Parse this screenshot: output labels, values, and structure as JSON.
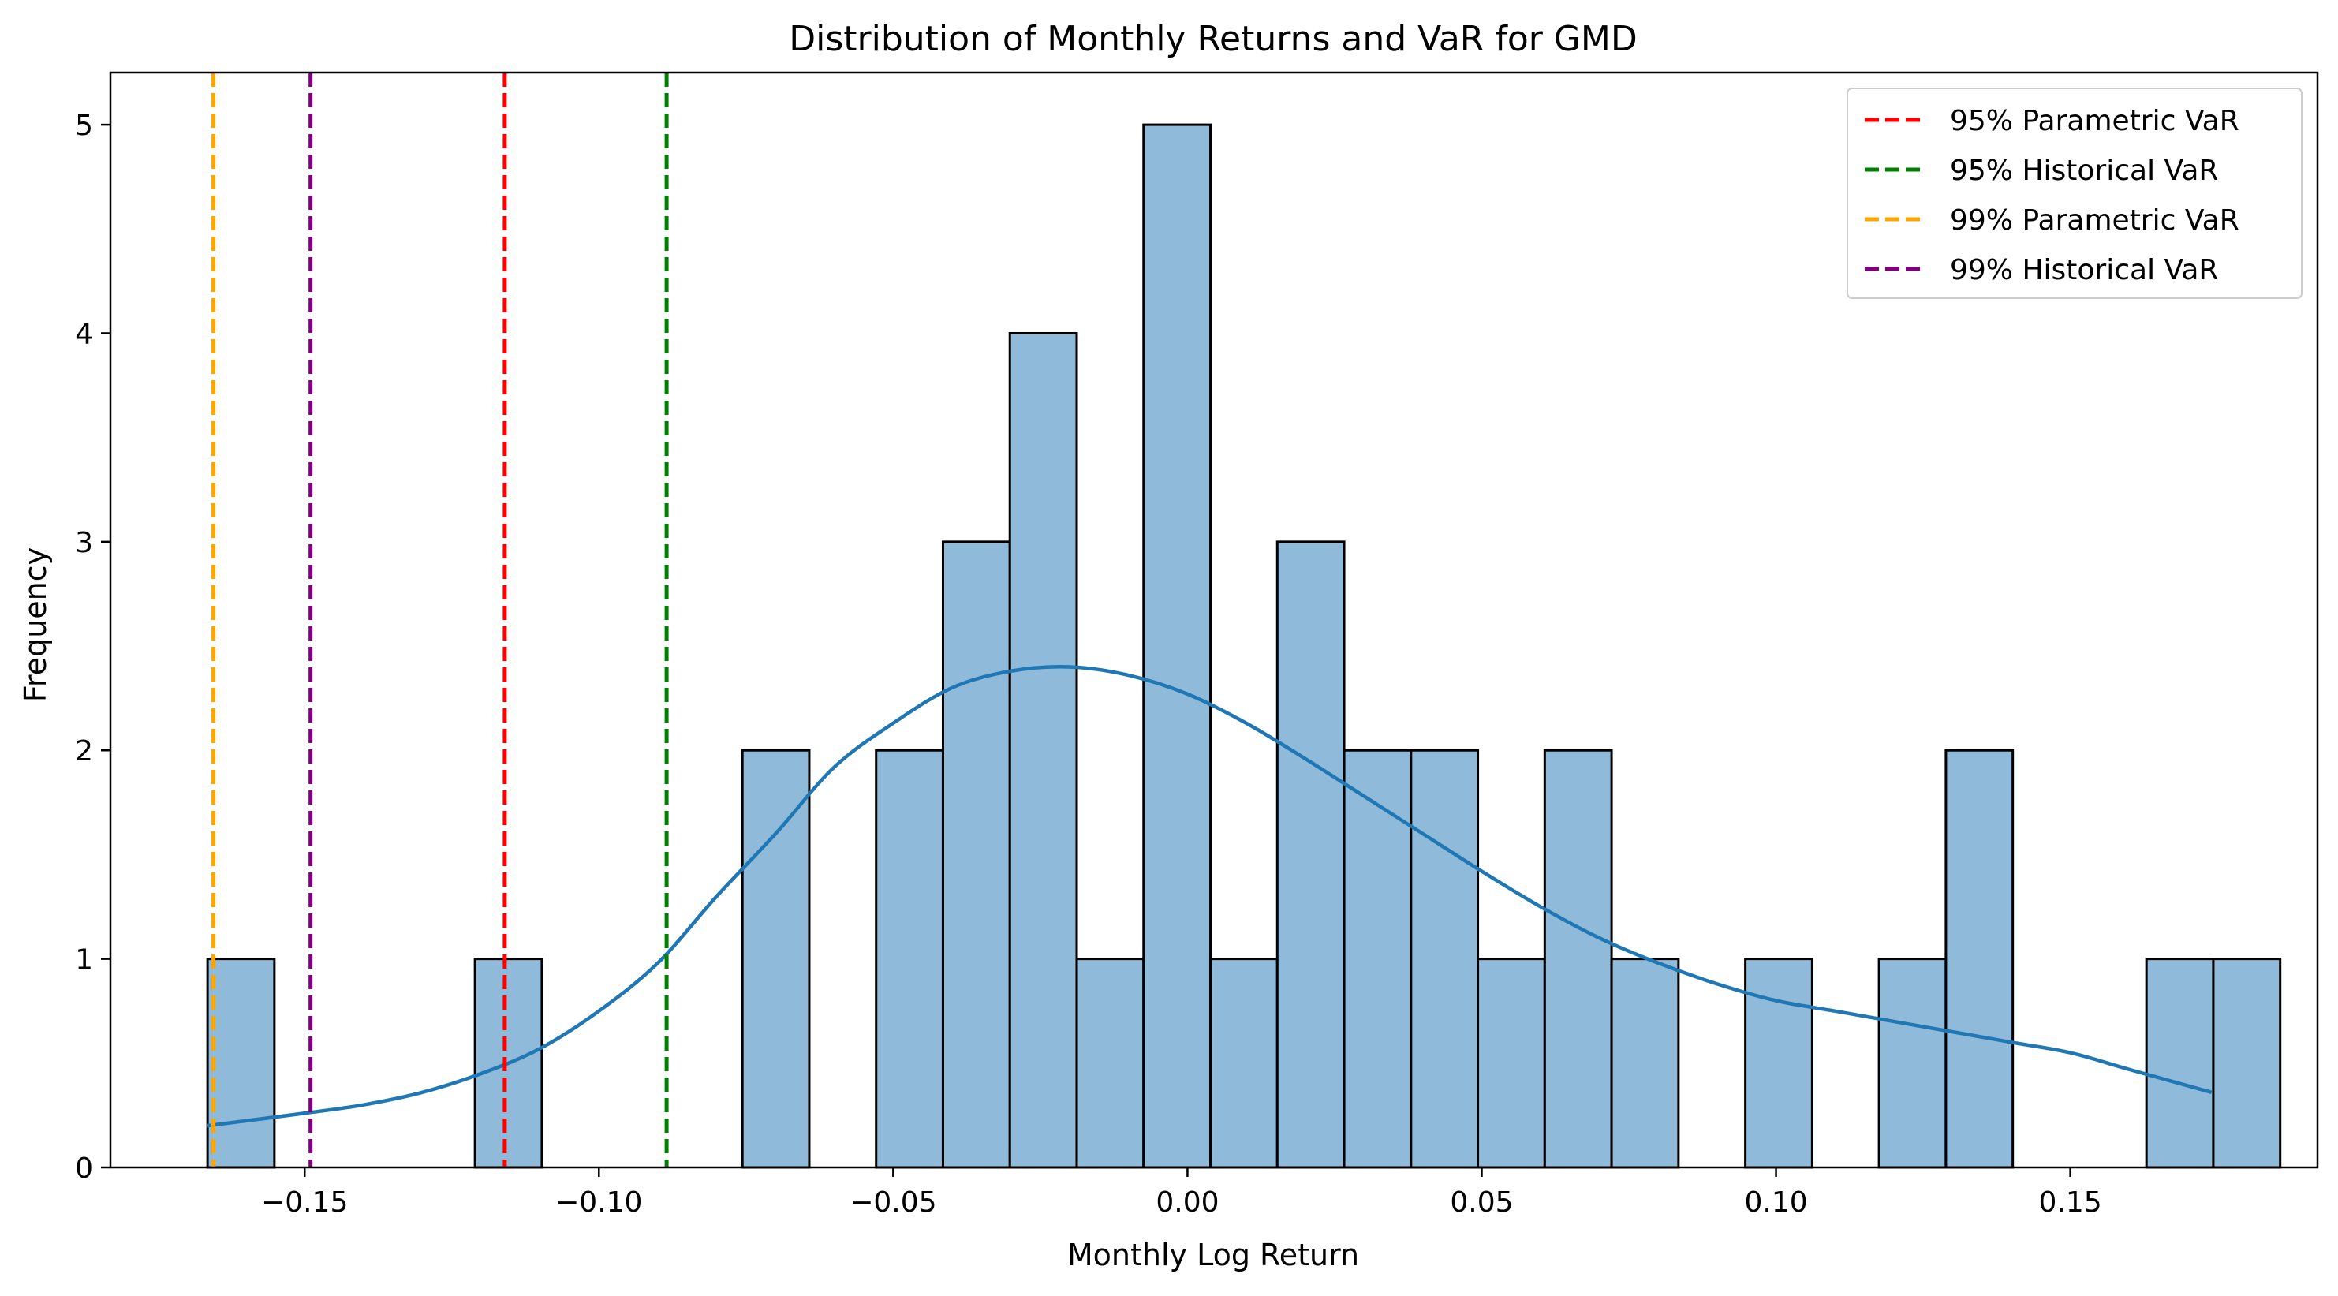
{
  "chart_data": {
    "type": "bar",
    "title": "Distribution of Monthly Returns and VaR for GMD",
    "xlabel": "Monthly Log Return",
    "ylabel": "Frequency",
    "xlim": [
      -0.183,
      0.192
    ],
    "ylim": [
      0,
      5.25
    ],
    "xticks": [
      {
        "value": -0.15,
        "label": "−0.15"
      },
      {
        "value": -0.1,
        "label": "−0.10"
      },
      {
        "value": -0.05,
        "label": "−0.05"
      },
      {
        "value": 0.0,
        "label": "0.00"
      },
      {
        "value": 0.05,
        "label": "0.05"
      },
      {
        "value": 0.1,
        "label": "0.10"
      },
      {
        "value": 0.15,
        "label": "0.15"
      }
    ],
    "yticks": [
      {
        "value": 0,
        "label": "0"
      },
      {
        "value": 1,
        "label": "1"
      },
      {
        "value": 2,
        "label": "2"
      },
      {
        "value": 3,
        "label": "3"
      },
      {
        "value": 4,
        "label": "4"
      },
      {
        "value": 5,
        "label": "5"
      }
    ],
    "grid": false,
    "legend_position": "top-right",
    "bar_color": "#8fbad9",
    "bar_edge_color": "#000000",
    "histogram": {
      "bin_start": -0.1665,
      "bin_width": 0.01136,
      "counts": [
        1,
        0,
        0,
        0,
        1,
        0,
        0,
        0,
        2,
        0,
        2,
        3,
        4,
        1,
        5,
        1,
        3,
        2,
        2,
        1,
        2,
        1,
        0,
        1,
        0,
        1,
        2,
        0,
        0,
        1,
        1
      ]
    },
    "kde": {
      "name": "",
      "color": "#1f77b4",
      "x": [
        -0.1665,
        -0.15,
        -0.14,
        -0.13,
        -0.12,
        -0.11,
        -0.1,
        -0.09,
        -0.08,
        -0.07,
        -0.06,
        -0.05,
        -0.04,
        -0.03,
        -0.02,
        -0.01,
        0.0,
        0.01,
        0.02,
        0.03,
        0.04,
        0.05,
        0.06,
        0.07,
        0.08,
        0.09,
        0.1,
        0.11,
        0.12,
        0.13,
        0.14,
        0.15,
        0.16,
        0.174
      ],
      "y": [
        0.2,
        0.26,
        0.3,
        0.36,
        0.45,
        0.57,
        0.75,
        0.98,
        1.3,
        1.6,
        1.92,
        2.13,
        2.3,
        2.38,
        2.4,
        2.36,
        2.27,
        2.13,
        1.96,
        1.78,
        1.6,
        1.42,
        1.25,
        1.1,
        0.98,
        0.88,
        0.8,
        0.75,
        0.7,
        0.65,
        0.6,
        0.55,
        0.47,
        0.36
      ]
    },
    "var_lines": [
      {
        "name": "95% Parametric VaR",
        "value": -0.116,
        "color": "#ff0000"
      },
      {
        "name": "95% Historical VaR",
        "value": -0.0885,
        "color": "#008000"
      },
      {
        "name": "99% Parametric VaR",
        "value": -0.1655,
        "color": "#ffa500"
      },
      {
        "name": "99% Historical VaR",
        "value": -0.149,
        "color": "#800080"
      }
    ]
  }
}
